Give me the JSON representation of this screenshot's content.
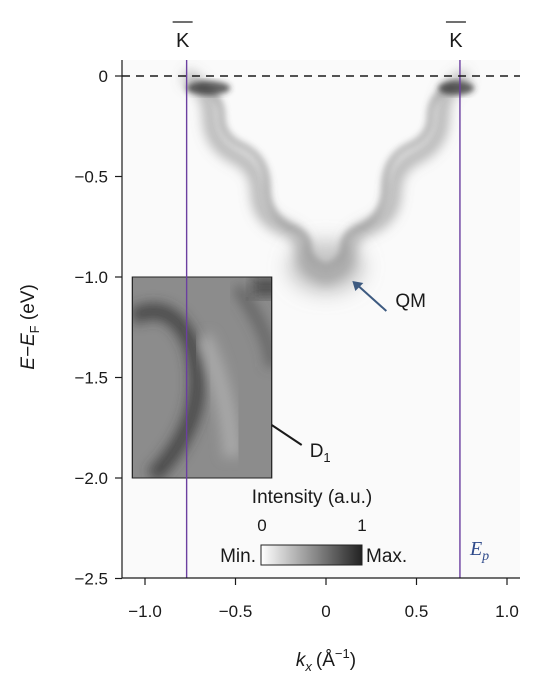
{
  "chart_data": {
    "type": "heatmap",
    "xlabel": {
      "main": "k",
      "sub": "x",
      "unit": "(Å",
      "sup": "−1",
      "close": ")"
    },
    "ylabel": {
      "pre": "E−E",
      "sub": "F",
      "unit": " (eV)"
    },
    "xlim": [
      -1.1,
      1.1
    ],
    "ylim": [
      -2.5,
      0.1
    ],
    "xticks": [
      -1.0,
      -0.5,
      0,
      0.5,
      1.0
    ],
    "xtick_labels": [
      "−1.0",
      "−0.5",
      "0",
      "0.5",
      "1.0"
    ],
    "yticks": [
      0,
      -0.5,
      -1.0,
      -1.5,
      -2.0,
      -2.5
    ],
    "ytick_labels": [
      "0",
      "−0.5",
      "−1.0",
      "−1.5",
      "−2.0",
      "−2.5"
    ],
    "fermi_level": 0,
    "k_points": [
      {
        "label": "K",
        "x": -0.77
      },
      {
        "label": "K",
        "x": 0.74
      }
    ],
    "bands": {
      "outer_branch_points": [
        [
          -0.78,
          0.0
        ],
        [
          -0.5,
          -0.4
        ],
        [
          -0.25,
          -0.75
        ],
        [
          0.0,
          -1.0
        ],
        [
          0.25,
          -0.75
        ],
        [
          0.5,
          -0.4
        ],
        [
          0.78,
          0.0
        ]
      ],
      "inner_branch_points": [
        [
          -0.7,
          -0.05
        ],
        [
          -0.45,
          -0.35
        ],
        [
          -0.2,
          -0.75
        ],
        [
          0.0,
          -0.95
        ],
        [
          0.2,
          -0.75
        ],
        [
          0.45,
          -0.35
        ],
        [
          0.7,
          -0.05
        ]
      ]
    },
    "annotations": {
      "qm": {
        "text": "QM",
        "point": [
          0.14,
          -1.0
        ]
      },
      "d1": {
        "text": "D",
        "sub": "1"
      },
      "ep": {
        "text": "E",
        "sub": "p"
      }
    },
    "inset": {
      "x_range": [
        -1.07,
        -0.3
      ],
      "y_range": [
        -2.0,
        -1.0
      ]
    },
    "colorbar": {
      "title": "Intensity (a.u.)",
      "tick_labels": [
        "0",
        "1"
      ],
      "min_label": "Min.",
      "max_label": "Max.",
      "colors": [
        "#ffffff",
        "#222222"
      ]
    },
    "colors": {
      "k_lines": "#6b3fa0",
      "qm_arrow": "#3d5a80",
      "ep_text": "#2f4a8a"
    }
  }
}
